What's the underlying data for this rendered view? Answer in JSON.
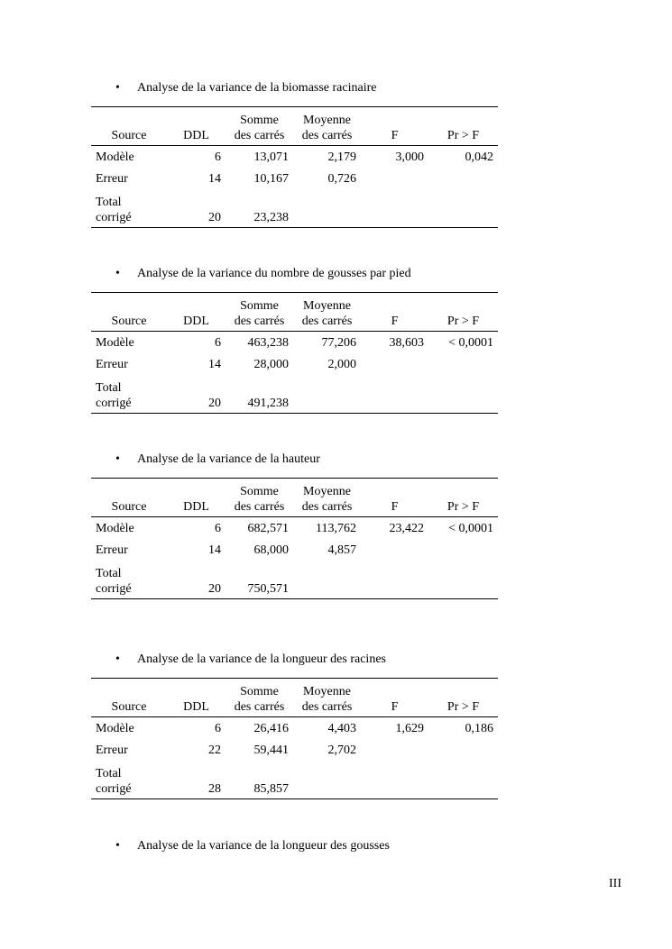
{
  "sections": [
    {
      "title": "Analyse de la variance de la biomasse racinaire",
      "table": {
        "headers": [
          [
            "Source"
          ],
          [
            "DDL"
          ],
          [
            "Somme",
            "des carrés"
          ],
          [
            "Moyenne",
            "des carrés"
          ],
          [
            "F"
          ],
          [
            "Pr > F"
          ]
        ],
        "rows": [
          [
            "Modèle",
            "6",
            "13,071",
            "2,179",
            "3,000",
            "0,042"
          ],
          [
            "Erreur",
            "14",
            "10,167",
            "0,726"
          ],
          [
            [
              "Total",
              "corrigé"
            ],
            "20",
            "23,238"
          ]
        ]
      }
    },
    {
      "title": "Analyse de la variance du nombre de gousses par pied",
      "table": {
        "headers": [
          [
            "Source"
          ],
          [
            "DDL"
          ],
          [
            "Somme",
            "des carrés"
          ],
          [
            "Moyenne",
            "des carrés"
          ],
          [
            "F"
          ],
          [
            "Pr > F"
          ]
        ],
        "rows": [
          [
            "Modèle",
            "6",
            "463,238",
            "77,206",
            "38,603",
            "< 0,0001"
          ],
          [
            "Erreur",
            "14",
            "28,000",
            "2,000"
          ],
          [
            [
              "Total",
              "corrigé"
            ],
            "20",
            "491,238"
          ]
        ]
      }
    },
    {
      "title": "Analyse de la variance de la hauteur",
      "table": {
        "headers": [
          [
            "Source"
          ],
          [
            "DDL"
          ],
          [
            "Somme",
            "des carrés"
          ],
          [
            "Moyenne",
            "des carrés"
          ],
          [
            "F"
          ],
          [
            "Pr > F"
          ]
        ],
        "rows": [
          [
            "Modèle",
            "6",
            "682,571",
            "113,762",
            "23,422",
            "< 0,0001"
          ],
          [
            "Erreur",
            "14",
            "68,000",
            "4,857"
          ],
          [
            [
              "Total",
              "corrigé"
            ],
            "20",
            "750,571"
          ]
        ]
      }
    },
    {
      "title": "Analyse de la variance de la longueur des racines",
      "table": {
        "headers": [
          [
            "Source"
          ],
          [
            "DDL"
          ],
          [
            "Somme",
            "des carrés"
          ],
          [
            "Moyenne",
            "des carrés"
          ],
          [
            "F"
          ],
          [
            "Pr > F"
          ]
        ],
        "rows": [
          [
            "Modèle",
            "6",
            "26,416",
            "4,403",
            "1,629",
            "0,186"
          ],
          [
            "Erreur",
            "22",
            "59,441",
            "2,702"
          ],
          [
            [
              "Total",
              "corrigé"
            ],
            "28",
            "85,857"
          ]
        ]
      }
    },
    {
      "title": "Analyse de la variance de la longueur des gousses"
    }
  ],
  "page_number": "III"
}
